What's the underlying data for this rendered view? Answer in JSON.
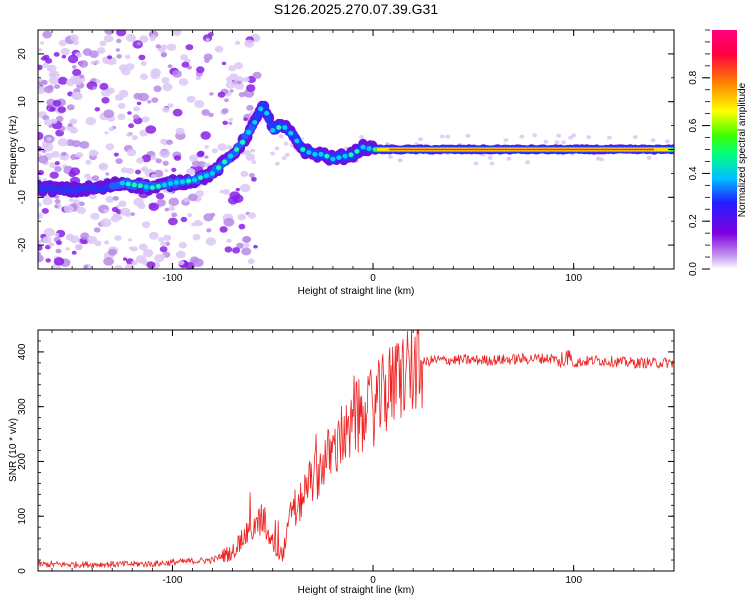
{
  "title": "S126.2025.270.07.39.G31",
  "chart_data": [
    {
      "type": "heatmap",
      "name": "spectrogram",
      "xlabel": "Height of straight line (km)",
      "ylabel": "Frequency (Hz)",
      "xlim": [
        -167,
        150
      ],
      "ylim": [
        -25,
        25
      ],
      "xticks": [
        -100,
        0,
        100
      ],
      "xtick_labels": [
        "-100",
        "0",
        "100"
      ],
      "yticks": [
        -20,
        -10,
        0,
        10,
        20
      ],
      "ytick_labels": [
        "-20",
        "-10",
        "0",
        "10",
        "20"
      ],
      "ridge": {
        "description": "dominant frequency ridge",
        "x": [
          -167,
          -150,
          -135,
          -125,
          -110,
          -100,
          -90,
          -80,
          -75,
          -70,
          -65,
          -60,
          -57,
          -55,
          -50,
          -45,
          -40,
          -35,
          -30,
          -25,
          -20,
          -15,
          -10,
          -5,
          0,
          10,
          50,
          100,
          150
        ],
        "y": [
          -8,
          -8.5,
          -8,
          -7,
          -8,
          -7,
          -6.5,
          -5,
          -3,
          -1,
          1.5,
          5,
          7,
          10,
          4,
          5,
          3,
          0,
          -1,
          -1,
          -2,
          -1.5,
          -1,
          0.5,
          0,
          0,
          0,
          0,
          0
        ]
      },
      "colorbar": {
        "label": "Normalized spectral amplitude",
        "range": [
          0,
          1
        ],
        "ticks": [
          0.0,
          0.2,
          0.4,
          0.6,
          0.8
        ],
        "tick_labels": [
          "0.0",
          "0.2",
          "0.4",
          "0.6",
          "0.8"
        ],
        "colors": [
          "#ffffff",
          "#c8a0f0",
          "#8000e0",
          "#2020ff",
          "#00c0ff",
          "#00ff80",
          "#40ff00",
          "#ffff00",
          "#ff8000",
          "#ff0040",
          "#ff0080"
        ]
      }
    },
    {
      "type": "line",
      "name": "snr",
      "xlabel": "Height of straight line (km)",
      "ylabel": "SNR (10 * v/v)",
      "xlim": [
        -167,
        150
      ],
      "ylim": [
        0,
        440
      ],
      "xticks": [
        -100,
        0,
        100
      ],
      "xtick_labels": [
        "-100",
        "0",
        "100"
      ],
      "yticks": [
        0,
        100,
        200,
        300,
        400
      ],
      "ytick_labels": [
        "0",
        "100",
        "200",
        "300",
        "400"
      ],
      "color": "#ee2222",
      "series": [
        {
          "name": "SNR",
          "x": [
            -167,
            -140,
            -110,
            -90,
            -80,
            -75,
            -70,
            -66,
            -62,
            -58,
            -55,
            -52,
            -48,
            -45,
            -42,
            -40,
            -38,
            -35,
            -32,
            -30,
            -27,
            -25,
            -22,
            -20,
            -18,
            -15,
            -12,
            -10,
            -8,
            -5,
            -2,
            0,
            3,
            6,
            10,
            15,
            20,
            25,
            30,
            40,
            60,
            80,
            90,
            95,
            97,
            100,
            110,
            130,
            150
          ],
          "y": [
            12,
            12,
            13,
            18,
            20,
            28,
            35,
            55,
            70,
            85,
            95,
            60,
            40,
            30,
            80,
            130,
            100,
            140,
            160,
            170,
            180,
            200,
            210,
            220,
            230,
            250,
            240,
            270,
            280,
            270,
            290,
            300,
            310,
            325,
            340,
            360,
            372,
            380,
            385,
            385,
            385,
            388,
            388,
            375,
            400,
            380,
            385,
            380,
            380
          ]
        }
      ]
    }
  ]
}
